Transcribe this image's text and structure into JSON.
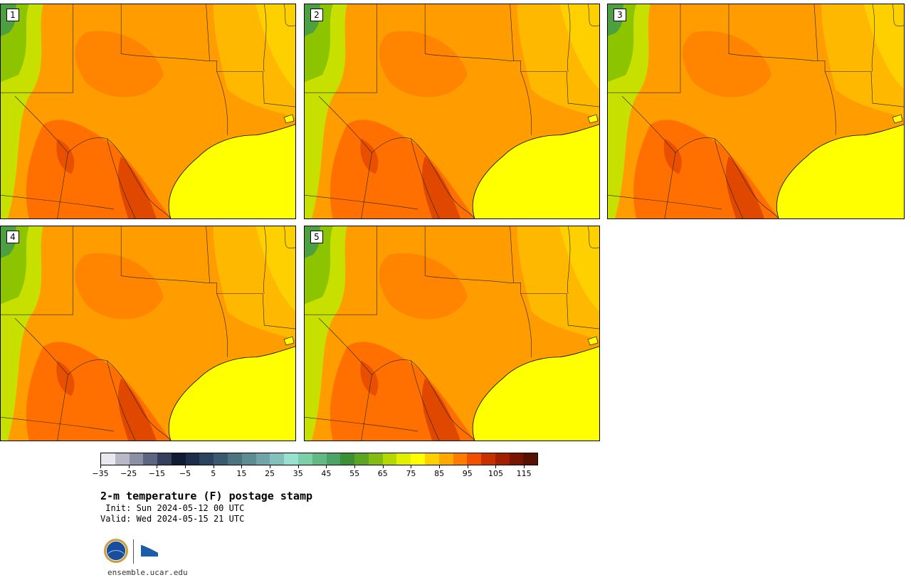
{
  "panels": [
    {
      "label": "1"
    },
    {
      "label": "2"
    },
    {
      "label": "3"
    },
    {
      "label": "4"
    },
    {
      "label": "5"
    }
  ],
  "colorbar": {
    "colors": [
      "#e8e8ee",
      "#b8b8c8",
      "#8c90a4",
      "#5c6680",
      "#34405e",
      "#101c34",
      "#1c2e4c",
      "#2a4460",
      "#3a5a70",
      "#4a7480",
      "#5c8c94",
      "#70a4a8",
      "#84c0bc",
      "#98e0d0",
      "#7cd0a8",
      "#64b884",
      "#4ca464",
      "#3c9034",
      "#5ca424",
      "#84bc14",
      "#b4d800",
      "#e0f000",
      "#ffff00",
      "#ffd000",
      "#ffa800",
      "#ff7c00",
      "#f05000",
      "#c83000",
      "#a02000",
      "#781400",
      "#581000"
    ],
    "tick_labels": [
      "−35",
      "−25",
      "−15",
      "−5",
      "5",
      "15",
      "25",
      "35",
      "45",
      "55",
      "65",
      "75",
      "85",
      "95",
      "105",
      "115"
    ]
  },
  "title": "2-m temperature (F) postage stamp",
  "init": " Init: Sun 2024-05-12 00 UTC",
  "valid": "Valid: Wed 2024-05-15 21 UTC",
  "logos": {
    "nsf": "NSF",
    "ncar": "NCAR"
  },
  "website": "ensemble.ucar.edu"
}
